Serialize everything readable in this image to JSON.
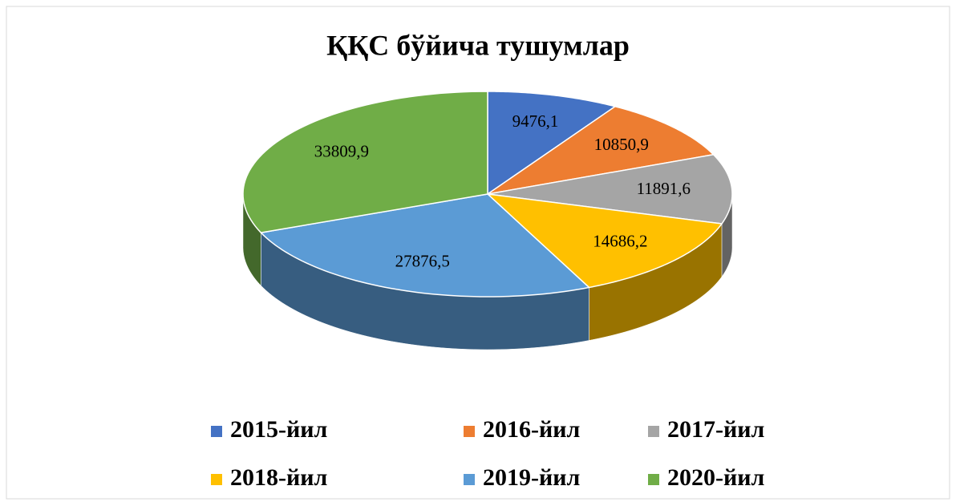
{
  "chart_data": {
    "type": "pie",
    "title": "ҚҚС бўйича тушумлар",
    "categories": [
      "2015-йил",
      "2016-йил",
      "2017-йил",
      "2018-йил",
      "2019-йил",
      "2020-йил"
    ],
    "values": [
      9476.1,
      10850.9,
      11891.6,
      14686.2,
      27876.5,
      33809.9
    ],
    "value_labels": [
      "9476,1",
      "10850,9",
      "11891,6",
      "14686,2",
      "27876,5",
      "33809,9"
    ],
    "colors": [
      "#4472c4",
      "#ed7d31",
      "#a5a5a5",
      "#ffc000",
      "#5b9bd5",
      "#70ad47"
    ],
    "legend": "bottom"
  }
}
